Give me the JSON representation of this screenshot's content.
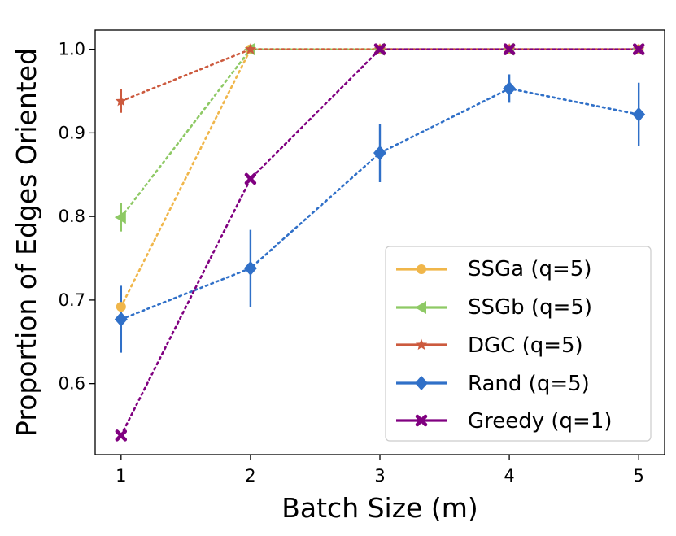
{
  "chart_data": {
    "type": "line",
    "title": "",
    "xlabel": "Batch Size (m)",
    "ylabel": "Proportion of Edges Oriented",
    "x": [
      1,
      2,
      3,
      4,
      5
    ],
    "xticks": [
      "1",
      "2",
      "3",
      "4",
      "5"
    ],
    "yticks": [
      "0.6",
      "0.7",
      "0.8",
      "0.9",
      "1.0"
    ],
    "ytick_values": [
      0.6,
      0.7,
      0.8,
      0.9,
      1.0
    ],
    "xlim": [
      0.8,
      5.2
    ],
    "ylim": [
      0.515,
      1.023
    ],
    "grid": false,
    "legend_position": "lower-right",
    "series": [
      {
        "name": "SSGa (q=5)",
        "color": "#f0b64a",
        "marker": "circle",
        "values": [
          0.692,
          1.0,
          1.0,
          1.0,
          1.0
        ],
        "errors": [
          0,
          0,
          0,
          0,
          0
        ]
      },
      {
        "name": "SSGb (q=5)",
        "color": "#8ec965",
        "marker": "triangle-left",
        "values": [
          0.799,
          1.0,
          1.0,
          1.0,
          1.0
        ],
        "errors": [
          0.017,
          0,
          0,
          0,
          0
        ]
      },
      {
        "name": "DGC (q=5)",
        "color": "#cc5a3e",
        "marker": "star",
        "values": [
          0.938,
          1.0,
          1.0,
          1.0,
          1.0
        ],
        "errors": [
          0.014,
          0,
          0,
          0,
          0
        ]
      },
      {
        "name": "Rand (q=5)",
        "color": "#3070c8",
        "marker": "diamond",
        "values": [
          0.677,
          0.738,
          0.876,
          0.953,
          0.922
        ],
        "errors": [
          0.04,
          0.046,
          0.035,
          0.017,
          0.038
        ]
      },
      {
        "name": "Greedy (q=1)",
        "color": "#800080",
        "marker": "x",
        "values": [
          0.538,
          0.845,
          1.0,
          1.0,
          1.0
        ],
        "errors": [
          0,
          0,
          0,
          0,
          0
        ]
      }
    ]
  }
}
